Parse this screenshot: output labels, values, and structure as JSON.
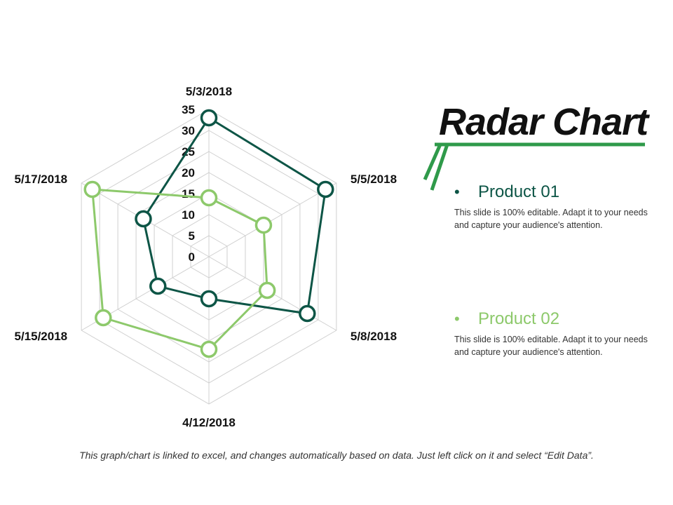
{
  "title": "Radar Chart",
  "colors": {
    "product1": "#0d5546",
    "product2": "#8dc96b",
    "grid": "#d0d0d0",
    "accent": "#2f9a4a"
  },
  "legend": [
    {
      "bullet": "•",
      "name": "Product 01",
      "description": "This slide is 100% editable. Adapt it to your needs and capture your audience's attention."
    },
    {
      "bullet": "•",
      "name": "Product 02",
      "description": "This slide is 100% editable. Adapt it to your needs and capture your audience's attention."
    }
  ],
  "footer": "This graph/chart is linked to excel, and changes automatically based on data. Just left click on it and select “Edit Data”.",
  "chart_data": {
    "type": "radar",
    "categories": [
      "5/3/2018",
      "5/5/2018",
      "5/8/2018",
      "4/12/2018",
      "5/15/2018",
      "5/17/2018"
    ],
    "ticks": [
      "0",
      "5",
      "10",
      "15",
      "20",
      "25",
      "30",
      "35"
    ],
    "rlim": [
      0,
      35
    ],
    "series": [
      {
        "name": "Product 01",
        "values": [
          33,
          32,
          27,
          10,
          14,
          18
        ]
      },
      {
        "name": "Product 02",
        "values": [
          14,
          15,
          16,
          22,
          29,
          32
        ]
      }
    ]
  }
}
